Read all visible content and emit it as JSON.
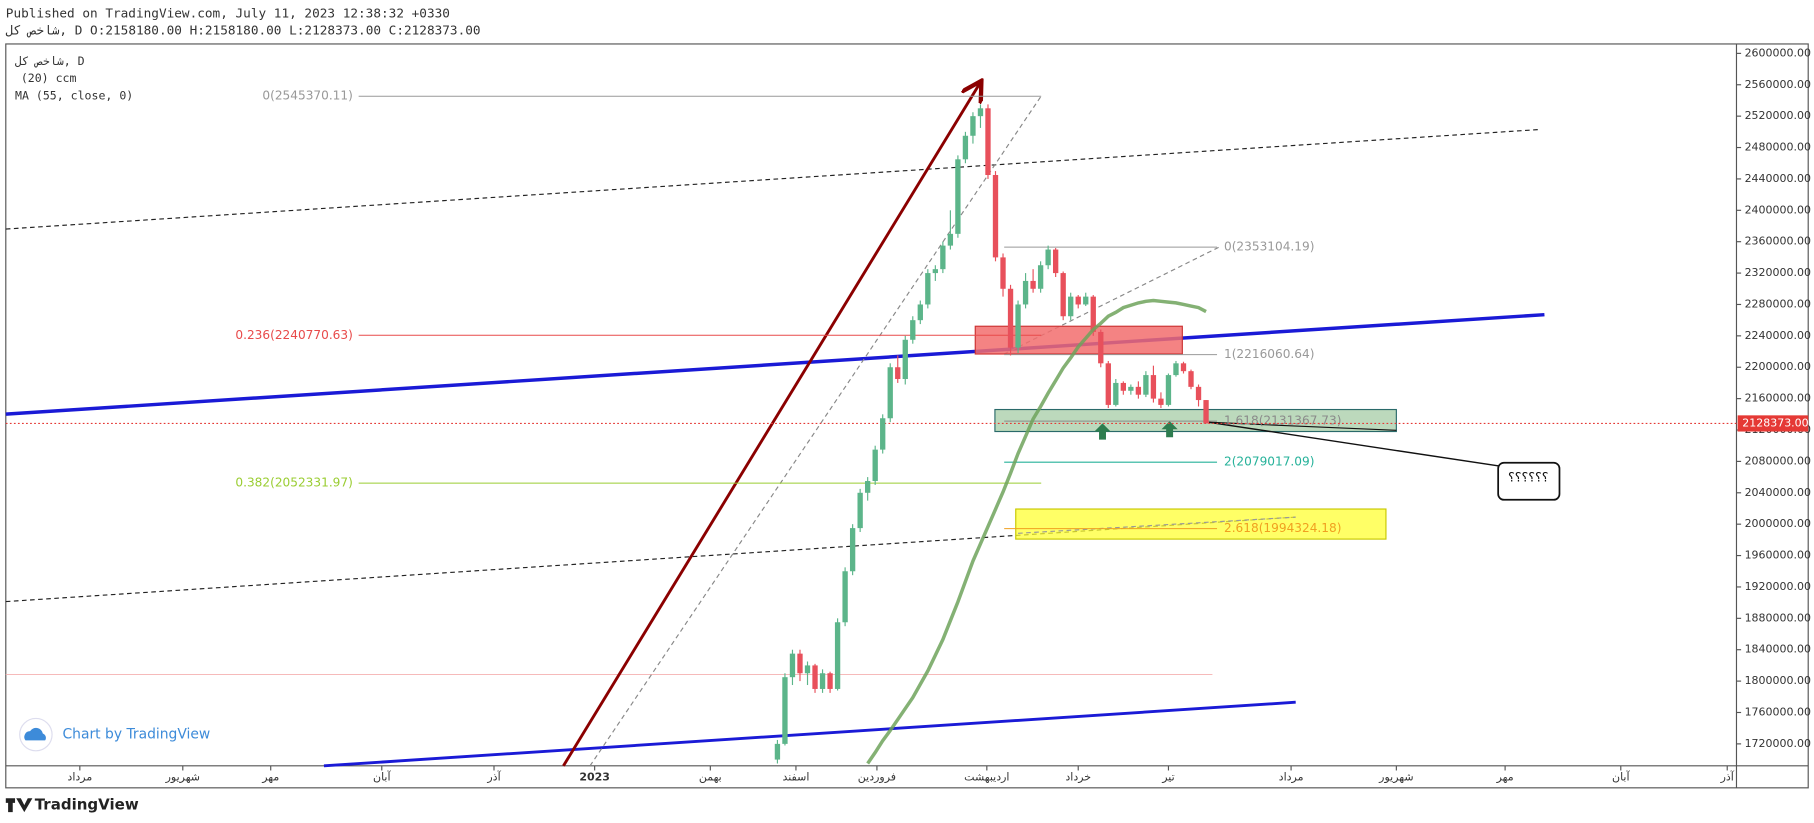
{
  "header": {
    "published": "Published on TradingView.com, July 11, 2023 12:38:32 +0330",
    "symbol_line": "شاخص کل, D O:2158180.00 H:2158180.00 L:2128373.00 C:2128373.00"
  },
  "legend": [
    "شاخص کل, D",
    "(20) ccm",
    "MA (55, close, 0)"
  ],
  "watermark": "Chart by TradingView",
  "footer": {
    "logo": "TradingView"
  },
  "callout": "؟؟؟؟؟؟",
  "chart_data": {
    "type": "candlestick",
    "up_color": "#5cb58a",
    "down_color": "#e8505b",
    "ma_color": "#6fa35c",
    "x_labels": [
      "مرداد",
      "شهریور",
      "مهر",
      "آبان",
      "آذر",
      "2023",
      "بهمن",
      "اسفند",
      "فروردین",
      "اردیبهشت",
      "خرداد",
      "تیر",
      "مرداد",
      "شهریور",
      "مهر",
      "آبان",
      "آذر"
    ],
    "ylim": [
      1692000,
      2612000
    ],
    "yticks": [
      {
        "value": 1720000,
        "label": "1720000.00"
      },
      {
        "value": 1760000,
        "label": "1760000.00"
      },
      {
        "value": 1800000,
        "label": "1800000.00"
      },
      {
        "value": 1840000,
        "label": "1840000.00"
      },
      {
        "value": 1880000,
        "label": "1880000.00"
      },
      {
        "value": 1920000,
        "label": "1920000.00"
      },
      {
        "value": 1960000,
        "label": "1960000.00"
      },
      {
        "value": 2000000,
        "label": "2000000.00"
      },
      {
        "value": 2040000,
        "label": "2040000.00"
      },
      {
        "value": 2080000,
        "label": "2080000.00"
      },
      {
        "value": 2120000,
        "label": "2120000.00"
      },
      {
        "value": 2160000,
        "label": "2160000.00"
      },
      {
        "value": 2200000,
        "label": "2200000.00"
      },
      {
        "value": 2240000,
        "label": "2240000.00"
      },
      {
        "value": 2280000,
        "label": "2280000.00"
      },
      {
        "value": 2320000,
        "label": "2320000.00"
      },
      {
        "value": 2360000,
        "label": "2360000.00"
      },
      {
        "value": 2400000,
        "label": "2400000.00"
      },
      {
        "value": 2440000,
        "label": "2440000.00"
      },
      {
        "value": 2480000,
        "label": "2480000.00"
      },
      {
        "value": 2520000,
        "label": "2520000.00"
      },
      {
        "value": 2560000,
        "label": "2560000.00"
      },
      {
        "value": 2600000,
        "label": "2600000.00"
      }
    ],
    "last_price": {
      "value": 2128373,
      "label": "2128373.00"
    },
    "open": [
      1700000,
      1720000,
      1805000,
      1835000,
      1810000,
      1820000,
      1790000,
      1810000,
      1790000,
      1875000,
      1940000,
      1995000,
      2040000,
      2055000,
      2095000,
      2135000,
      2200000,
      2185000,
      2235000,
      2260000,
      2280000,
      2320000,
      2325000,
      2355000,
      2370000,
      2465000,
      2495000,
      2520000,
      2530000,
      2445000,
      2340000,
      2300000,
      2225000,
      2280000,
      2310000,
      2300000,
      2330000,
      2350000,
      2320000,
      2265000,
      2290000,
      2280000,
      2290000,
      2245000,
      2205000,
      2152000,
      2180000,
      2170000,
      2175000,
      2165000,
      2190000,
      2160000,
      2152000,
      2190000,
      2205000,
      2195000,
      2175000,
      2158180
    ],
    "high": [
      1725000,
      1810000,
      1840000,
      1840000,
      1825000,
      1822000,
      1815000,
      1812000,
      1880000,
      1945000,
      2000000,
      2045000,
      2060000,
      2100000,
      2140000,
      2205000,
      2215000,
      2240000,
      2265000,
      2285000,
      2325000,
      2330000,
      2360000,
      2400000,
      2470000,
      2500000,
      2525000,
      2535000,
      2535000,
      2450000,
      2345000,
      2305000,
      2285000,
      2320000,
      2325000,
      2335000,
      2355000,
      2352000,
      2322000,
      2295000,
      2292000,
      2295000,
      2292000,
      2248000,
      2208000,
      2185000,
      2182000,
      2178000,
      2182000,
      2195000,
      2202000,
      2168000,
      2192000,
      2208000,
      2207000,
      2197000,
      2178000,
      2158180
    ],
    "low": [
      1695000,
      1718000,
      1795000,
      1800000,
      1795000,
      1785000,
      1785000,
      1785000,
      1788000,
      1870000,
      1935000,
      1990000,
      2030000,
      2050000,
      2090000,
      2130000,
      2180000,
      2178000,
      2230000,
      2255000,
      2275000,
      2310000,
      2320000,
      2350000,
      2365000,
      2460000,
      2485000,
      2505000,
      2440000,
      2335000,
      2290000,
      2215000,
      2218000,
      2275000,
      2295000,
      2295000,
      2325000,
      2315000,
      2260000,
      2260000,
      2275000,
      2278000,
      2240000,
      2200000,
      2148000,
      2150000,
      2165000,
      2165000,
      2160000,
      2162000,
      2155000,
      2148000,
      2150000,
      2188000,
      2192000,
      2172000,
      2150000,
      2128373
    ],
    "close": [
      1720000,
      1805000,
      1835000,
      1810000,
      1820000,
      1790000,
      1810000,
      1790000,
      1875000,
      1940000,
      1995000,
      2040000,
      2055000,
      2095000,
      2135000,
      2200000,
      2185000,
      2235000,
      2260000,
      2280000,
      2320000,
      2325000,
      2355000,
      2370000,
      2465000,
      2495000,
      2520000,
      2530000,
      2445000,
      2340000,
      2300000,
      2225000,
      2280000,
      2310000,
      2300000,
      2330000,
      2350000,
      2320000,
      2265000,
      2290000,
      2280000,
      2290000,
      2245000,
      2205000,
      2152000,
      2180000,
      2170000,
      2175000,
      2165000,
      2190000,
      2160000,
      2152000,
      2190000,
      2205000,
      2195000,
      2175000,
      2158180,
      2128373
    ],
    "ma": [
      null,
      null,
      null,
      null,
      null,
      null,
      null,
      null,
      null,
      null,
      null,
      null,
      1695000,
      1709000,
      1724000,
      1737000,
      1751000,
      1765000,
      1779000,
      1796000,
      1813000,
      1833000,
      1853000,
      1877000,
      1901000,
      1927000,
      1953000,
      1975000,
      1997000,
      2019000,
      2041000,
      2065000,
      2090000,
      2112000,
      2134000,
      2150000,
      2167000,
      2183000,
      2199000,
      2212000,
      2226000,
      2237000,
      2248000,
      2256000,
      2265000,
      2270000,
      2276000,
      2279000,
      2282000,
      2284000,
      2285000,
      2284000,
      2283000,
      2282000,
      2280000,
      2278000,
      2276000,
      2271000
    ],
    "fib_left": [
      {
        "value": 2545370.11,
        "label": "0(2545370.11)",
        "color": "#999999"
      },
      {
        "value": 2240770.63,
        "label": "0.236(2240770.63)",
        "color": "#e84a4a"
      },
      {
        "value": 2052331.97,
        "label": "0.382(2052331.97)",
        "color": "#9acd32"
      }
    ],
    "fib_right": [
      {
        "value": 2353104.19,
        "label": "0(2353104.19)",
        "color": "#999999"
      },
      {
        "value": 2216060.64,
        "label": "1(2216060.64)",
        "color": "#999999"
      },
      {
        "value": 2131367.73,
        "label": "1.618(2131367.73)",
        "color": "#8a8a8a"
      },
      {
        "value": 2079017.09,
        "label": "2(2079017.09)",
        "color": "#26b29a"
      },
      {
        "value": 1994324.18,
        "label": "2.618(1994324.18)",
        "color": "#f0a020"
      }
    ]
  }
}
